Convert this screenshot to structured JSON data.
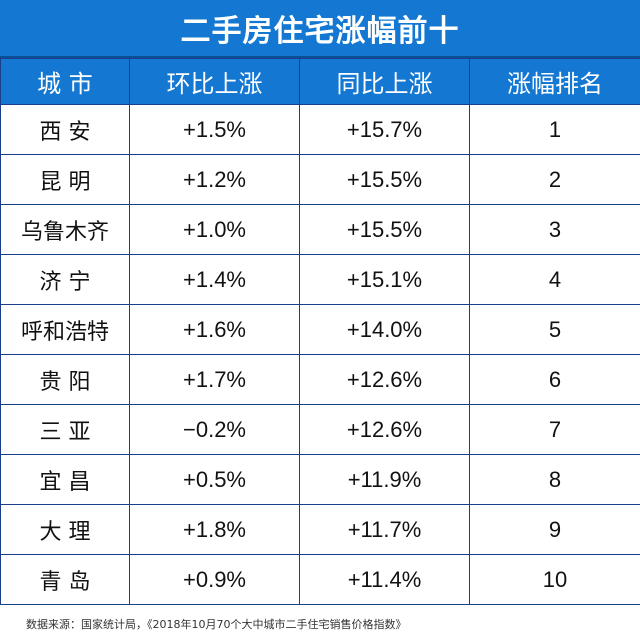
{
  "title": "二手房住宅涨幅前十",
  "headers": [
    "城 市",
    "环比上涨",
    "同比上涨",
    "涨幅排名"
  ],
  "rows": [
    {
      "city": "西 安",
      "mom": "+1.5%",
      "yoy": "+15.7%",
      "rank": "1"
    },
    {
      "city": "昆 明",
      "mom": "+1.2%",
      "yoy": "+15.5%",
      "rank": "2"
    },
    {
      "city": "乌鲁木齐",
      "mom": "+1.0%",
      "yoy": "+15.5%",
      "rank": "3"
    },
    {
      "city": "济 宁",
      "mom": "+1.4%",
      "yoy": "+15.1%",
      "rank": "4"
    },
    {
      "city": "呼和浩特",
      "mom": "+1.6%",
      "yoy": "+14.0%",
      "rank": "5"
    },
    {
      "city": "贵 阳",
      "mom": "+1.7%",
      "yoy": "+12.6%",
      "rank": "6"
    },
    {
      "city": "三 亚",
      "mom": "−0.2%",
      "yoy": "+12.6%",
      "rank": "7"
    },
    {
      "city": "宜 昌",
      "mom": "+0.5%",
      "yoy": "+11.9%",
      "rank": "8"
    },
    {
      "city": "大 理",
      "mom": "+1.8%",
      "yoy": "+11.7%",
      "rank": "9"
    },
    {
      "city": "青 岛",
      "mom": "+0.9%",
      "yoy": "+11.4%",
      "rank": "10"
    }
  ],
  "footnote": "数据来源：国家统计局，《2018年10月70个大中城市二手住宅销售价格指数》",
  "colors": {
    "header_bg": "#1478d2",
    "header_text": "#ffffff",
    "border": "#1a3f8a"
  }
}
